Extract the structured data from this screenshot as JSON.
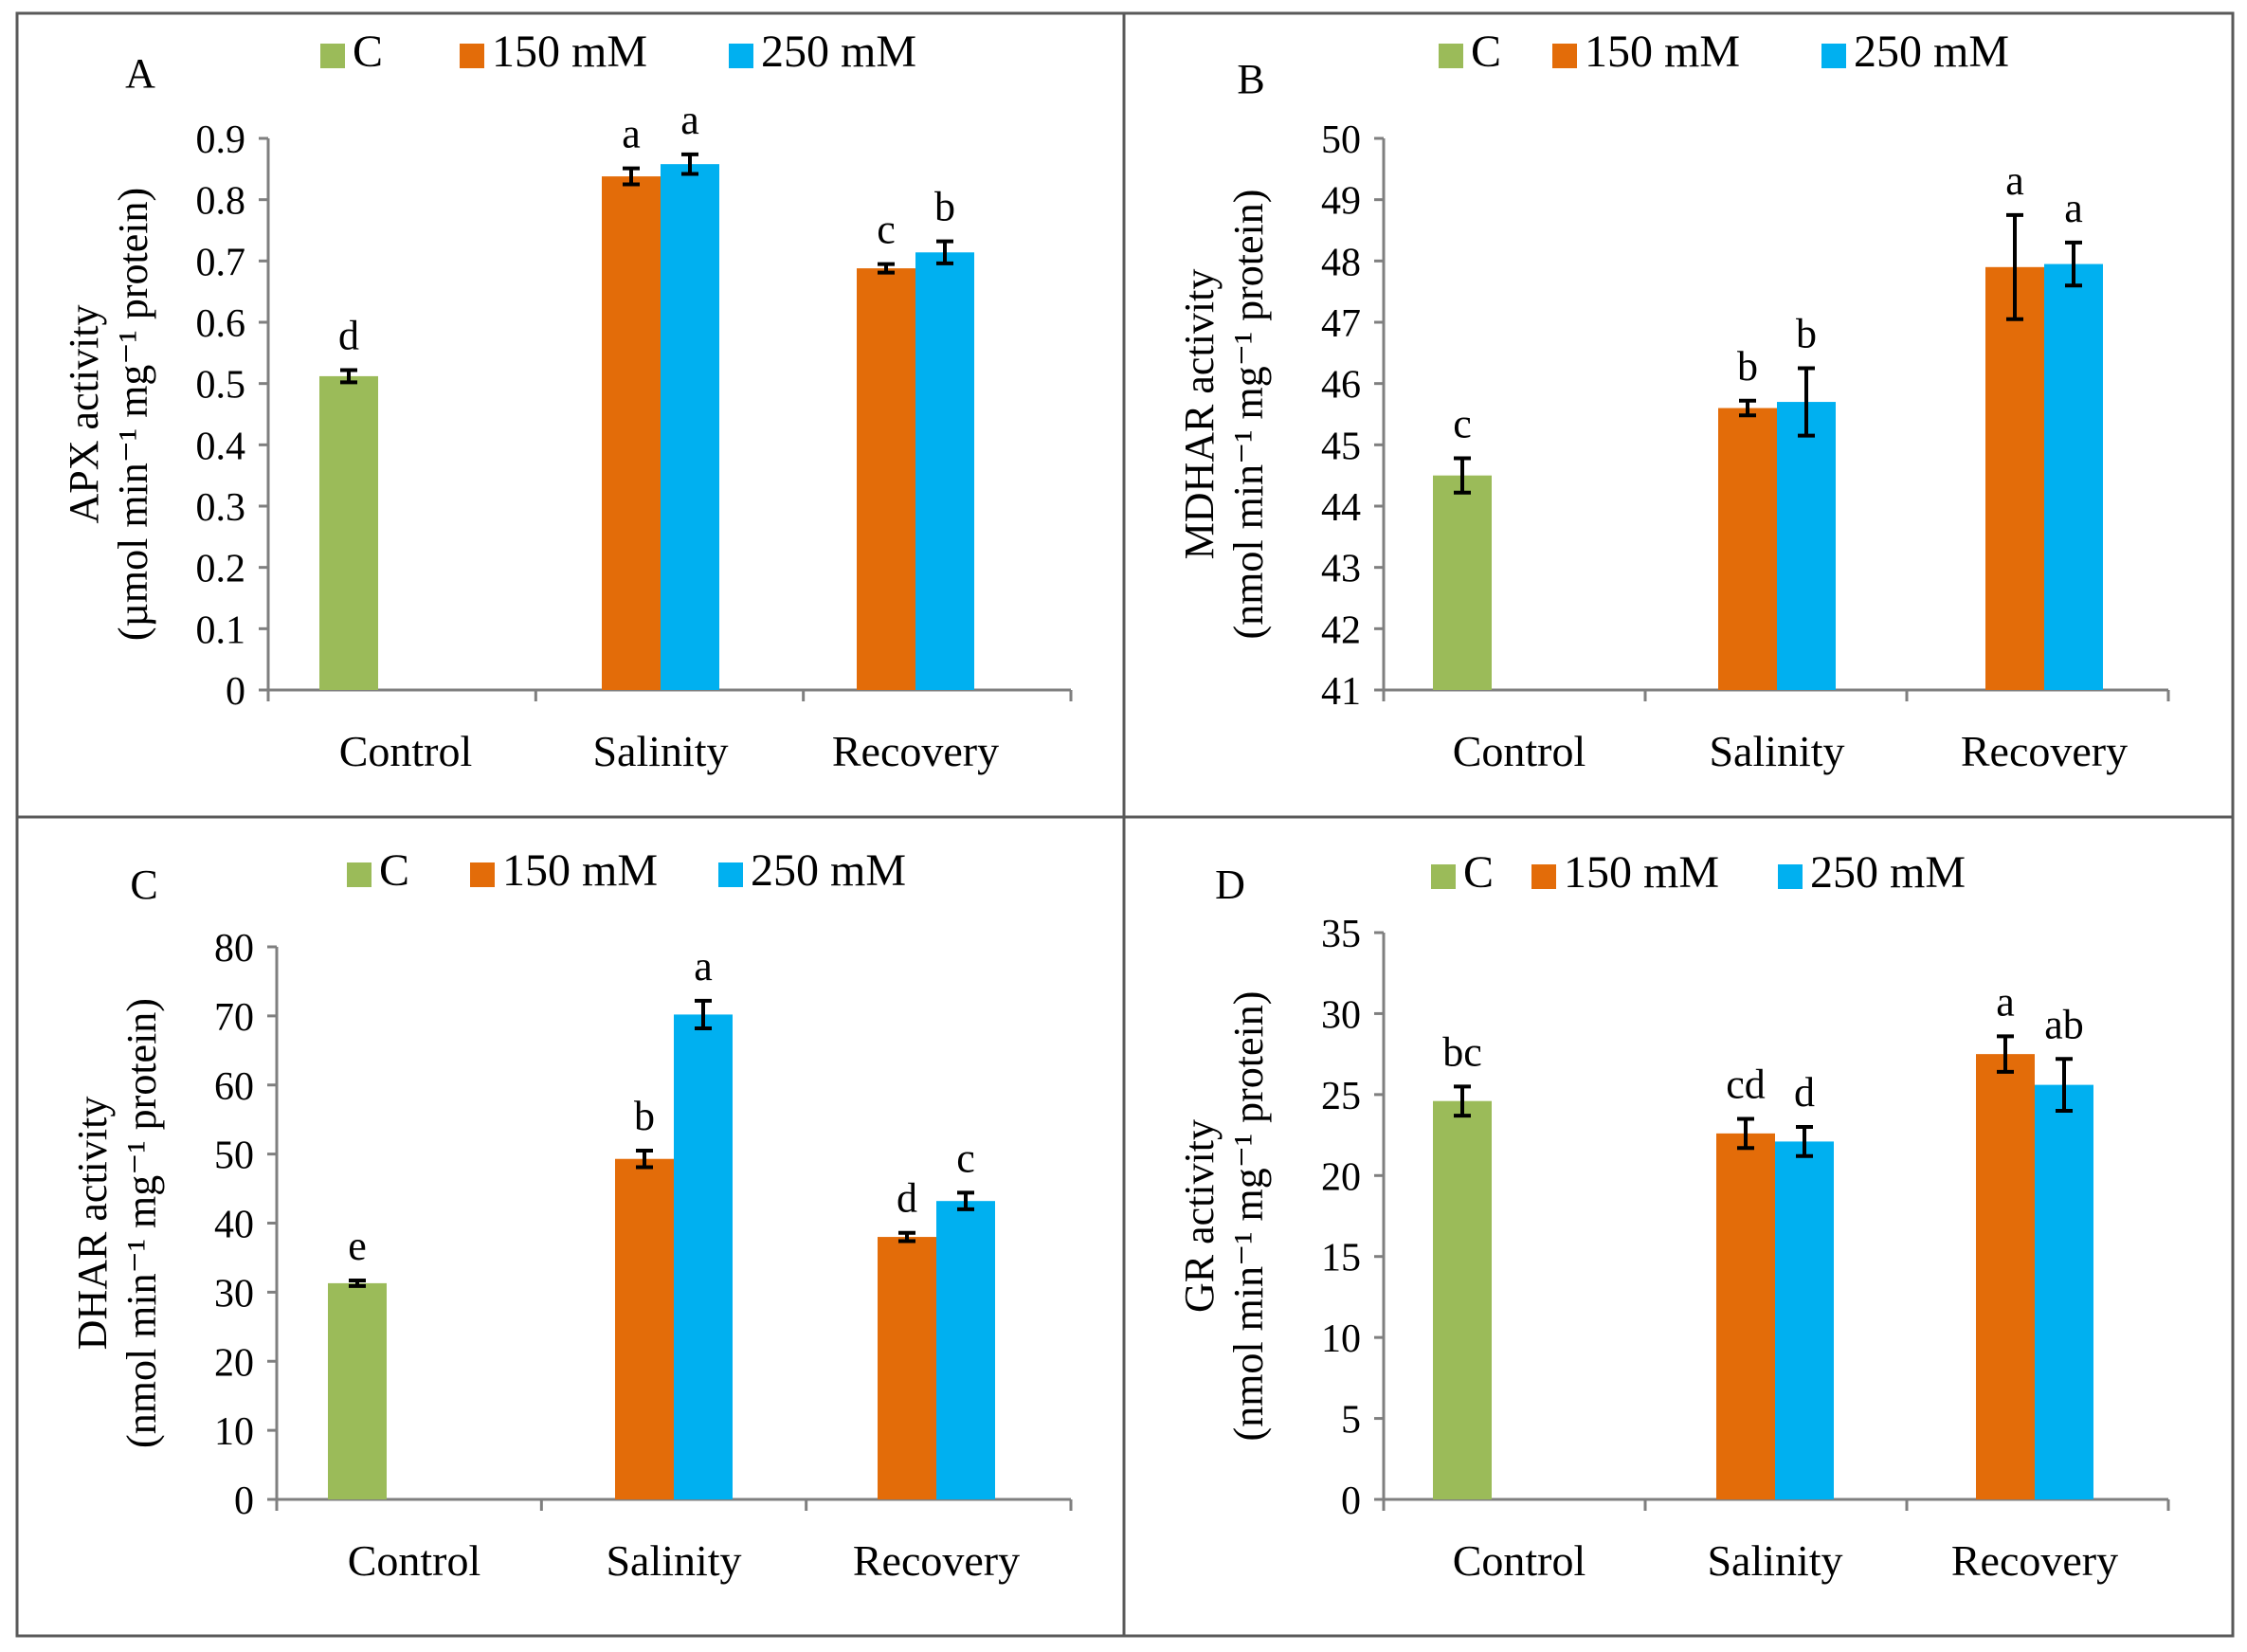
{
  "legend": [
    {
      "name": "C",
      "color": "#9BBB59"
    },
    {
      "name": "150 mM",
      "color": "#E36C09"
    },
    {
      "name": "250 mM",
      "color": "#00B0F0"
    }
  ],
  "chart_data": [
    {
      "type": "bar",
      "panel_label": "A",
      "categories": [
        "Control",
        "Salinity",
        "Recovery"
      ],
      "ylabel_line1": "APX activity",
      "ylabel_line2": "(µmol min⁻¹ mg⁻¹ protein)",
      "ylim": [
        0,
        0.9
      ],
      "yticks": [
        "0",
        "0.1",
        "0.2",
        "0.3",
        "0.4",
        "0.5",
        "0.6",
        "0.7",
        "0.8",
        "0.9"
      ],
      "series": [
        {
          "name": "C",
          "values": [
            0.512,
            null,
            null
          ],
          "errors": [
            0.01,
            null,
            null
          ],
          "letters": [
            "d",
            null,
            null
          ]
        },
        {
          "name": "150 mM",
          "values": [
            null,
            0.838,
            0.688
          ],
          "errors": [
            null,
            0.013,
            0.007
          ],
          "letters": [
            null,
            "a",
            "c"
          ]
        },
        {
          "name": "250 mM",
          "values": [
            null,
            0.858,
            0.714
          ],
          "errors": [
            null,
            0.016,
            0.018
          ],
          "letters": [
            null,
            "a",
            "b"
          ]
        }
      ]
    },
    {
      "type": "bar",
      "panel_label": "B",
      "categories": [
        "Control",
        "Salinity",
        "Recovery"
      ],
      "ylabel_line1": "MDHAR activity",
      "ylabel_line2": "(nmol min⁻¹ mg⁻¹ protein)",
      "ylim": [
        41,
        50
      ],
      "yticks": [
        "41",
        "42",
        "43",
        "44",
        "45",
        "46",
        "47",
        "48",
        "49",
        "50"
      ],
      "series": [
        {
          "name": "C",
          "values": [
            44.5,
            null,
            null
          ],
          "errors": [
            0.28,
            null,
            null
          ],
          "letters": [
            "c",
            null,
            null
          ]
        },
        {
          "name": "150 mM",
          "values": [
            null,
            45.6,
            47.9
          ],
          "errors": [
            null,
            0.12,
            0.85
          ],
          "letters": [
            null,
            "b",
            "a"
          ]
        },
        {
          "name": "250 mM",
          "values": [
            null,
            45.7,
            47.95
          ],
          "errors": [
            null,
            0.55,
            0.35
          ],
          "letters": [
            null,
            "b",
            "a"
          ]
        }
      ]
    },
    {
      "type": "bar",
      "panel_label": "C",
      "categories": [
        "Control",
        "Salinity",
        "Recovery"
      ],
      "ylabel_line1": "DHAR activity",
      "ylabel_line2": "(nmol min⁻¹ mg⁻¹ protein)",
      "ylim": [
        0,
        80
      ],
      "yticks": [
        "0",
        "10",
        "20",
        "30",
        "40",
        "50",
        "60",
        "70",
        "80"
      ],
      "series": [
        {
          "name": "C",
          "values": [
            31.3,
            null,
            null
          ],
          "errors": [
            0.4,
            null,
            null
          ],
          "letters": [
            "e",
            null,
            null
          ]
        },
        {
          "name": "150 mM",
          "values": [
            null,
            49.3,
            38.0
          ],
          "errors": [
            null,
            1.2,
            0.6
          ],
          "letters": [
            null,
            "b",
            "d"
          ]
        },
        {
          "name": "250 mM",
          "values": [
            null,
            70.2,
            43.2
          ],
          "errors": [
            null,
            2.0,
            1.2
          ],
          "letters": [
            null,
            "a",
            "c"
          ]
        }
      ]
    },
    {
      "type": "bar",
      "panel_label": "D",
      "categories": [
        "Control",
        "Salinity",
        "Recovery"
      ],
      "ylabel_line1": "GR activity",
      "ylabel_line2": "(nmol min⁻¹ mg⁻¹ protein)",
      "ylim": [
        0,
        35
      ],
      "yticks": [
        "0",
        "5",
        "10",
        "15",
        "20",
        "25",
        "30",
        "35"
      ],
      "series": [
        {
          "name": "C",
          "values": [
            24.6,
            null,
            null
          ],
          "errors": [
            0.9,
            null,
            null
          ],
          "letters": [
            "bc",
            null,
            null
          ]
        },
        {
          "name": "150 mM",
          "values": [
            null,
            22.6,
            27.5
          ],
          "errors": [
            null,
            0.9,
            1.1
          ],
          "letters": [
            null,
            "cd",
            "a"
          ]
        },
        {
          "name": "250 mM",
          "values": [
            null,
            22.1,
            25.6
          ],
          "errors": [
            null,
            0.9,
            1.6
          ],
          "letters": [
            null,
            "d",
            "ab"
          ]
        }
      ]
    }
  ]
}
